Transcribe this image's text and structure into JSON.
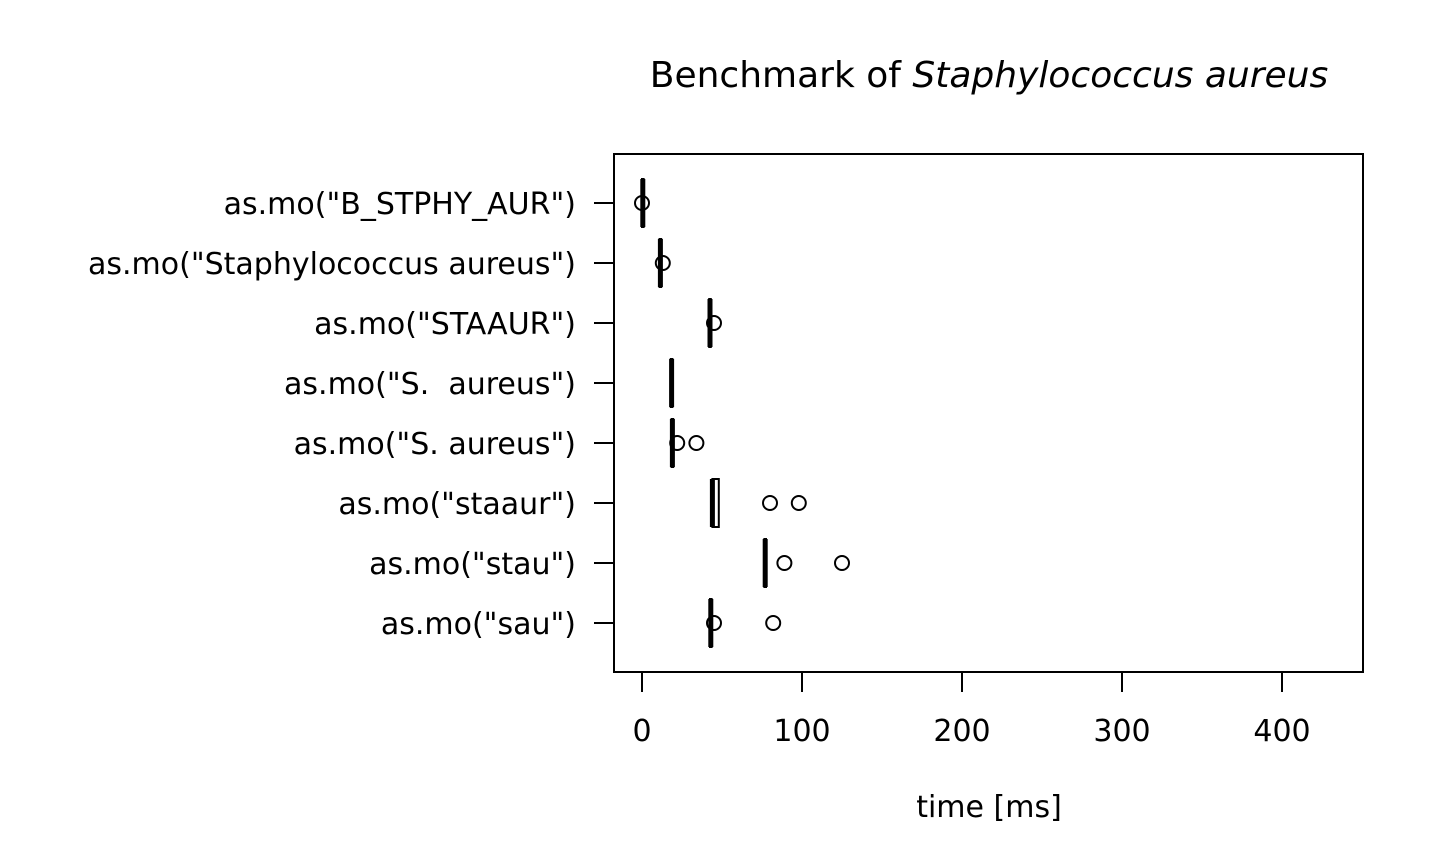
{
  "chart_data": {
    "type": "boxplot",
    "orientation": "horizontal",
    "title": {
      "prefix": "Benchmark of ",
      "italic": "Staphylococcus aureus"
    },
    "xlabel": "time [ms]",
    "ylabel": "",
    "xlim": [
      -17,
      450
    ],
    "xticks": [
      0,
      100,
      200,
      300,
      400
    ],
    "grid": false,
    "legend": "none",
    "categories": [
      "as.mo(\"B_STPHY_AUR\")",
      "as.mo(\"Staphylococcus aureus\")",
      "as.mo(\"STAAUR\")",
      "as.mo(\"S.  aureus\")",
      "as.mo(\"S. aureus\")",
      "as.mo(\"staaur\")",
      "as.mo(\"stau\")",
      "as.mo(\"sau\")"
    ],
    "series": [
      {
        "category": "as.mo(\"B_STPHY_AUR\")",
        "whisker_low": -0.5,
        "q1": 0,
        "median": 0.5,
        "q3": 1,
        "whisker_high": 1.5,
        "outliers": [
          0
        ]
      },
      {
        "category": "as.mo(\"Staphylococcus aureus\")",
        "whisker_low": 11,
        "q1": 11,
        "median": 11.5,
        "q3": 12,
        "whisker_high": 12.5,
        "outliers": [
          13
        ]
      },
      {
        "category": "as.mo(\"STAAUR\")",
        "whisker_low": 42,
        "q1": 42,
        "median": 42.5,
        "q3": 43,
        "whisker_high": 43.5,
        "outliers": [
          45
        ]
      },
      {
        "category": "as.mo(\"S.  aureus\")",
        "whisker_low": 18,
        "q1": 18,
        "median": 18.5,
        "q3": 19,
        "whisker_high": 19.5,
        "outliers": []
      },
      {
        "category": "as.mo(\"S. aureus\")",
        "whisker_low": 18,
        "q1": 18.5,
        "median": 19,
        "q3": 19.5,
        "whisker_high": 20,
        "outliers": [
          22,
          34
        ]
      },
      {
        "category": "as.mo(\"staaur\")",
        "whisker_low": 43,
        "q1": 44,
        "median": 44,
        "q3": 48,
        "whisker_high": 48,
        "outliers": [
          80,
          98
        ]
      },
      {
        "category": "as.mo(\"stau\")",
        "whisker_low": 76,
        "q1": 76.5,
        "median": 77,
        "q3": 77.5,
        "whisker_high": 78,
        "outliers": [
          89,
          125
        ]
      },
      {
        "category": "as.mo(\"sau\")",
        "whisker_low": 42,
        "q1": 42.5,
        "median": 43,
        "q3": 43.5,
        "whisker_high": 44,
        "outliers": [
          45,
          82
        ]
      }
    ]
  }
}
